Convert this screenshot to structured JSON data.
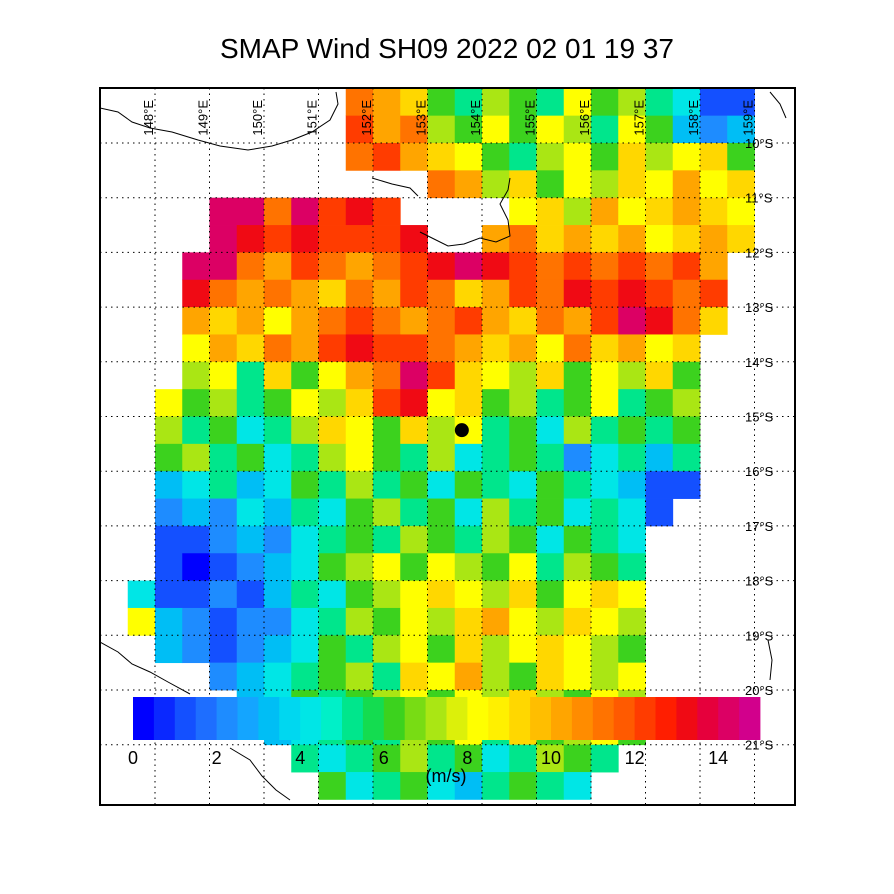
{
  "map": {
    "title": "SMAP Wind  SH09  2022 02 01 19 37",
    "lon_ticks": [
      {
        "value": 148,
        "label": "148°E"
      },
      {
        "value": 149,
        "label": "149°E"
      },
      {
        "value": 150,
        "label": "150°E"
      },
      {
        "value": 151,
        "label": "151°E"
      },
      {
        "value": 152,
        "label": "152°E"
      },
      {
        "value": 153,
        "label": "153°E"
      },
      {
        "value": 154,
        "label": "154°E"
      },
      {
        "value": 155,
        "label": "155°E"
      },
      {
        "value": 156,
        "label": "156°E"
      },
      {
        "value": 157,
        "label": "157°E"
      },
      {
        "value": 158,
        "label": "158°E"
      },
      {
        "value": 159,
        "label": "159°E"
      }
    ],
    "lat_ticks": [
      {
        "value": -10,
        "label": "10°S"
      },
      {
        "value": -11,
        "label": "11°S"
      },
      {
        "value": -12,
        "label": "12°S"
      },
      {
        "value": -13,
        "label": "13°S"
      },
      {
        "value": -14,
        "label": "14°S"
      },
      {
        "value": -15,
        "label": "15°S"
      },
      {
        "value": -16,
        "label": "16°S"
      },
      {
        "value": -17,
        "label": "17°S"
      },
      {
        "value": -18,
        "label": "18°S"
      },
      {
        "value": -19,
        "label": "19°S"
      },
      {
        "value": -20,
        "label": "20°S"
      },
      {
        "value": -21,
        "label": "21°S"
      }
    ],
    "lons": [
      147.75,
      148.25,
      148.75,
      149.25,
      149.75,
      150.25,
      150.75,
      151.25,
      151.75,
      152.25,
      152.75,
      153.25,
      153.75,
      154.25,
      154.75,
      155.25,
      155.75,
      156.25,
      156.75,
      157.25,
      157.75,
      158.25,
      158.75,
      159.25
    ],
    "lats": [
      -9.25,
      -9.75,
      -10.25,
      -10.75,
      -11.25,
      -11.75,
      -12.25,
      -12.75,
      -13.25,
      -13.75,
      -14.25,
      -14.75,
      -15.25,
      -15.75,
      -16.25,
      -16.75,
      -17.25,
      -17.75,
      -18.25,
      -18.75,
      -19.25,
      -19.75,
      -20.25,
      -20.75,
      -21.25,
      -21.75
    ],
    "values": [
      [
        null,
        null,
        null,
        null,
        null,
        null,
        null,
        null,
        11,
        10,
        9,
        6,
        5,
        7,
        6,
        5,
        8,
        6,
        7,
        5,
        4,
        1,
        1,
        null
      ],
      [
        null,
        null,
        null,
        null,
        null,
        null,
        null,
        null,
        12,
        10,
        11,
        7,
        6,
        8,
        6,
        8,
        7,
        5,
        8,
        6,
        3,
        2,
        3,
        null
      ],
      [
        null,
        null,
        null,
        null,
        null,
        null,
        null,
        null,
        11,
        12,
        10,
        9,
        8,
        6,
        5,
        7,
        8,
        6,
        9,
        7,
        8,
        9,
        6,
        null
      ],
      [
        null,
        null,
        null,
        null,
        null,
        null,
        null,
        null,
        null,
        null,
        null,
        11,
        10,
        7,
        9,
        6,
        8,
        7,
        9,
        8,
        10,
        8,
        9,
        null
      ],
      [
        null,
        null,
        null,
        14,
        14,
        11,
        14,
        12,
        13,
        12,
        null,
        null,
        null,
        null,
        8,
        9,
        7,
        10,
        8,
        9,
        10,
        9,
        8,
        null
      ],
      [
        null,
        null,
        null,
        14,
        13,
        12,
        13,
        12,
        12,
        12,
        13,
        null,
        null,
        10,
        11,
        9,
        10,
        9,
        10,
        8,
        9,
        10,
        9,
        null
      ],
      [
        null,
        null,
        14,
        14,
        11,
        10,
        12,
        11,
        10,
        11,
        12,
        13,
        14,
        13,
        12,
        11,
        12,
        11,
        12,
        11,
        12,
        10,
        null,
        null
      ],
      [
        null,
        null,
        13,
        11,
        10,
        11,
        10,
        9,
        11,
        10,
        12,
        11,
        9,
        10,
        12,
        11,
        13,
        12,
        13,
        12,
        11,
        12,
        null,
        null
      ],
      [
        null,
        null,
        10,
        9,
        10,
        8,
        10,
        11,
        12,
        11,
        10,
        11,
        12,
        10,
        9,
        11,
        10,
        12,
        14,
        13,
        11,
        9,
        null,
        null
      ],
      [
        null,
        null,
        8,
        10,
        9,
        11,
        10,
        12,
        13,
        12,
        12,
        11,
        10,
        9,
        10,
        8,
        11,
        9,
        10,
        8,
        9,
        null,
        null,
        null
      ],
      [
        null,
        null,
        7,
        8,
        5,
        9,
        6,
        8,
        10,
        11,
        14,
        12,
        9,
        8,
        7,
        9,
        6,
        8,
        7,
        9,
        6,
        null,
        null,
        null
      ],
      [
        null,
        8,
        6,
        7,
        5,
        6,
        8,
        7,
        9,
        12,
        13,
        8,
        9,
        6,
        7,
        5,
        6,
        8,
        5,
        6,
        7,
        null,
        null,
        null
      ],
      [
        null,
        7,
        5,
        6,
        4,
        5,
        7,
        9,
        8,
        6,
        9,
        7,
        8,
        5,
        6,
        4,
        7,
        5,
        6,
        5,
        6,
        null,
        null,
        null
      ],
      [
        null,
        6,
        7,
        5,
        6,
        4,
        5,
        7,
        8,
        6,
        5,
        7,
        4,
        5,
        6,
        5,
        2,
        4,
        5,
        3,
        5,
        null,
        null,
        null
      ],
      [
        null,
        3,
        4,
        5,
        3,
        4,
        6,
        5,
        7,
        5,
        6,
        4,
        6,
        5,
        4,
        6,
        5,
        4,
        3,
        1,
        1,
        null,
        null,
        null
      ],
      [
        null,
        2,
        3,
        2,
        4,
        3,
        5,
        4,
        6,
        7,
        5,
        6,
        4,
        7,
        5,
        6,
        4,
        5,
        4,
        1,
        null,
        null,
        null,
        null
      ],
      [
        null,
        1,
        1,
        2,
        3,
        2,
        4,
        5,
        6,
        5,
        7,
        6,
        5,
        7,
        6,
        4,
        6,
        5,
        4,
        null,
        null,
        null,
        null,
        null
      ],
      [
        null,
        1,
        0,
        1,
        2,
        3,
        4,
        6,
        7,
        8,
        6,
        8,
        7,
        6,
        8,
        5,
        7,
        6,
        5,
        null,
        null,
        null,
        null,
        null
      ],
      [
        4,
        1,
        1,
        2,
        1,
        3,
        5,
        4,
        6,
        7,
        8,
        9,
        8,
        7,
        9,
        6,
        8,
        9,
        8,
        null,
        null,
        null,
        null,
        null
      ],
      [
        8,
        3,
        2,
        1,
        2,
        2,
        4,
        5,
        7,
        6,
        8,
        7,
        9,
        10,
        8,
        7,
        9,
        8,
        7,
        null,
        null,
        null,
        null,
        null
      ],
      [
        null,
        3,
        2,
        1,
        2,
        3,
        4,
        6,
        5,
        7,
        8,
        6,
        9,
        7,
        8,
        9,
        8,
        7,
        6,
        null,
        null,
        null,
        null,
        null
      ],
      [
        null,
        null,
        null,
        2,
        3,
        4,
        5,
        6,
        7,
        5,
        9,
        8,
        10,
        7,
        6,
        9,
        8,
        7,
        8,
        null,
        null,
        null,
        null,
        null
      ],
      [
        null,
        null,
        null,
        null,
        3,
        4,
        6,
        5,
        6,
        7,
        8,
        6,
        8,
        7,
        9,
        7,
        6,
        8,
        7,
        null,
        null,
        null,
        null,
        null
      ],
      [
        null,
        null,
        null,
        null,
        null,
        3,
        4,
        5,
        6,
        5,
        7,
        6,
        8,
        5,
        9,
        6,
        7,
        8,
        6,
        null,
        null,
        null,
        null,
        null
      ],
      [
        null,
        null,
        null,
        null,
        null,
        null,
        5,
        4,
        5,
        6,
        7,
        5,
        6,
        4,
        5,
        7,
        6,
        5,
        null,
        null,
        null,
        null,
        null,
        null
      ],
      [
        null,
        null,
        null,
        null,
        null,
        null,
        null,
        6,
        4,
        5,
        6,
        4,
        3,
        5,
        6,
        5,
        4,
        null,
        null,
        null,
        null,
        null,
        null,
        null
      ]
    ],
    "center": {
      "lon": 153.63,
      "lat": -15.25
    },
    "colorbar": {
      "range": [
        0,
        15
      ],
      "ticks": [
        0,
        2,
        4,
        6,
        8,
        10,
        12,
        14
      ],
      "unit": "(m/s)",
      "colors": [
        "#0000ff",
        "#0a28ff",
        "#1450ff",
        "#1e6eff",
        "#1e8cff",
        "#14a5ff",
        "#00bef5",
        "#00d7f0",
        "#00e6e6",
        "#00f0c8",
        "#00e68c",
        "#14dc50",
        "#3cd21e",
        "#78dc14",
        "#aae614",
        "#dcf00a",
        "#ffff00",
        "#fff000",
        "#ffd700",
        "#ffbe00",
        "#ffa500",
        "#ff8c00",
        "#ff7300",
        "#ff5a00",
        "#ff3c00",
        "#ff1e00",
        "#f00a14",
        "#e6003c",
        "#dc0064",
        "#d2008c"
      ]
    }
  }
}
